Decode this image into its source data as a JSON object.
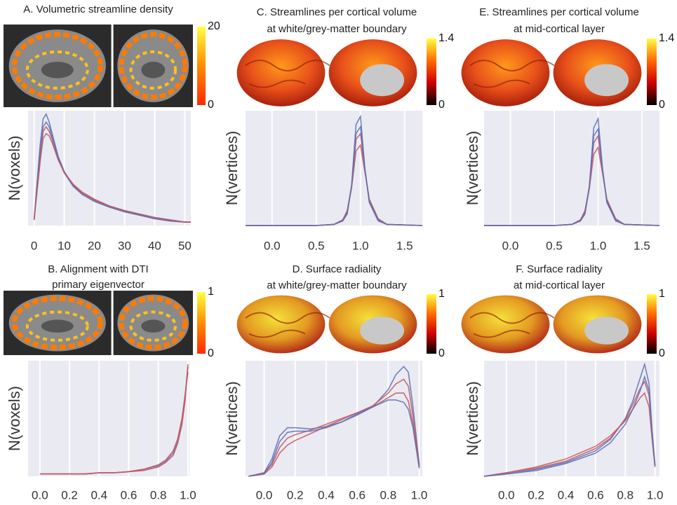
{
  "chart_data": [
    {
      "type": "line",
      "title": [
        "A. Volumetric streamline density"
      ],
      "ylabel": "N(voxels)",
      "x": [
        0,
        2,
        3,
        4,
        5,
        6,
        8,
        10,
        13,
        16,
        20,
        25,
        30,
        35,
        40,
        45,
        50,
        52
      ],
      "series": [
        {
          "color": "#5b6fb5",
          "values": [
            0.05,
            0.7,
            0.93,
            0.97,
            0.9,
            0.8,
            0.6,
            0.47,
            0.35,
            0.28,
            0.22,
            0.17,
            0.13,
            0.1,
            0.07,
            0.05,
            0.03,
            0.03
          ]
        },
        {
          "color": "#c0565e",
          "values": [
            0.05,
            0.6,
            0.82,
            0.86,
            0.82,
            0.75,
            0.58,
            0.46,
            0.35,
            0.28,
            0.22,
            0.16,
            0.12,
            0.09,
            0.06,
            0.04,
            0.03,
            0.03
          ]
        },
        {
          "color": "#5b6fb5",
          "values": [
            0.05,
            0.65,
            0.86,
            0.9,
            0.86,
            0.77,
            0.59,
            0.46,
            0.34,
            0.27,
            0.21,
            0.16,
            0.12,
            0.09,
            0.06,
            0.04,
            0.03,
            0.03
          ]
        },
        {
          "color": "#c0565e",
          "values": [
            0.05,
            0.55,
            0.76,
            0.8,
            0.78,
            0.72,
            0.57,
            0.46,
            0.36,
            0.29,
            0.23,
            0.17,
            0.13,
            0.1,
            0.07,
            0.05,
            0.03,
            0.03
          ]
        }
      ],
      "xlim": [
        -2,
        52
      ],
      "ylim": [
        0,
        1
      ],
      "xticks": [
        0,
        10,
        20,
        30,
        40,
        50
      ],
      "grid": true,
      "colorbar": {
        "ticks": [
          0,
          20
        ],
        "range": [
          0,
          20
        ],
        "colors": [
          "#ff2a00",
          "#ff8c00",
          "#ffff40"
        ]
      }
    },
    {
      "type": "line",
      "title": [
        "B. Alignment with DTI",
        "primary eigenvector"
      ],
      "ylabel": "N(voxels)",
      "x": [
        0,
        0.1,
        0.2,
        0.3,
        0.4,
        0.5,
        0.6,
        0.7,
        0.8,
        0.85,
        0.9,
        0.93,
        0.96,
        0.98,
        1.0
      ],
      "series": [
        {
          "color": "#5b6fb5",
          "values": [
            0.02,
            0.02,
            0.02,
            0.02,
            0.03,
            0.03,
            0.04,
            0.06,
            0.09,
            0.13,
            0.2,
            0.3,
            0.48,
            0.68,
            0.95
          ]
        },
        {
          "color": "#c0565e",
          "values": [
            0.02,
            0.02,
            0.02,
            0.02,
            0.03,
            0.03,
            0.04,
            0.06,
            0.1,
            0.14,
            0.22,
            0.32,
            0.5,
            0.7,
            0.9
          ]
        },
        {
          "color": "#c0565e",
          "values": [
            0.02,
            0.02,
            0.02,
            0.02,
            0.03,
            0.03,
            0.04,
            0.05,
            0.08,
            0.12,
            0.18,
            0.28,
            0.45,
            0.65,
            0.97
          ]
        }
      ],
      "xlim": [
        -0.08,
        1.01
      ],
      "ylim": [
        0,
        1
      ],
      "xticks": [
        {
          "value": 0,
          "label": "0.0"
        },
        {
          "value": 0.2,
          "label": "0.2"
        },
        {
          "value": 0.4,
          "label": "0.4"
        },
        {
          "value": 0.6,
          "label": "0.6"
        },
        {
          "value": 0.8,
          "label": "0.8"
        },
        {
          "value": 1,
          "label": "1.0"
        }
      ],
      "grid": true,
      "colorbar": {
        "ticks": [
          0,
          1
        ],
        "range": [
          0,
          1
        ],
        "colors": [
          "#ff2a00",
          "#ff8c00",
          "#ffff40"
        ]
      }
    },
    {
      "type": "line",
      "title": [
        "C. Streamlines per cortical volume",
        "at white/grey-matter boundary"
      ],
      "ylabel": "N(vertices)",
      "x": [
        -0.3,
        0.5,
        0.7,
        0.8,
        0.85,
        0.9,
        0.95,
        1.0,
        1.05,
        1.1,
        1.2,
        1.3,
        1.7
      ],
      "series": [
        {
          "color": "#5b6fb5",
          "values": [
            0,
            0,
            0.01,
            0.04,
            0.1,
            0.35,
            0.88,
            0.95,
            0.5,
            0.2,
            0.04,
            0.01,
            0
          ]
        },
        {
          "color": "#c0565e",
          "values": [
            0,
            0,
            0.01,
            0.05,
            0.12,
            0.35,
            0.75,
            0.8,
            0.48,
            0.22,
            0.05,
            0.01,
            0
          ]
        },
        {
          "color": "#c0565e",
          "values": [
            0,
            0,
            0.01,
            0.05,
            0.13,
            0.33,
            0.65,
            0.7,
            0.47,
            0.23,
            0.06,
            0.01,
            0
          ]
        },
        {
          "color": "#5b6fb5",
          "values": [
            0,
            0,
            0.01,
            0.04,
            0.11,
            0.34,
            0.8,
            0.86,
            0.49,
            0.21,
            0.05,
            0.01,
            0
          ]
        }
      ],
      "xlim": [
        -0.3,
        1.7
      ],
      "ylim": [
        0,
        1
      ],
      "xticks": [
        {
          "value": 0,
          "label": "0.0"
        },
        {
          "value": 0.5,
          "label": "0.5"
        },
        {
          "value": 1,
          "label": "1.0"
        },
        {
          "value": 1.5,
          "label": "1.5"
        }
      ],
      "grid": true,
      "colorbar": {
        "ticks": [
          0,
          1.4
        ],
        "range": [
          0,
          1.4
        ],
        "colors": [
          "#000000",
          "#cc0000",
          "#ff6a00",
          "#ffff40"
        ]
      }
    },
    {
      "type": "line",
      "title": [
        "D. Surface radiality",
        "at white/grey-matter boundary"
      ],
      "ylabel": "N(vertices)",
      "x": [
        -0.1,
        0,
        0.05,
        0.1,
        0.15,
        0.2,
        0.3,
        0.4,
        0.5,
        0.6,
        0.7,
        0.8,
        0.85,
        0.9,
        0.93,
        0.96,
        1.0
      ],
      "series": [
        {
          "color": "#5b6fb5",
          "values": [
            0,
            0.03,
            0.15,
            0.35,
            0.42,
            0.42,
            0.41,
            0.43,
            0.47,
            0.53,
            0.6,
            0.75,
            0.88,
            0.95,
            0.9,
            0.6,
            0.1
          ]
        },
        {
          "color": "#c0565e",
          "values": [
            0,
            0.03,
            0.1,
            0.25,
            0.33,
            0.36,
            0.4,
            0.45,
            0.5,
            0.55,
            0.6,
            0.68,
            0.72,
            0.72,
            0.65,
            0.45,
            0.08
          ]
        },
        {
          "color": "#c0565e",
          "values": [
            0,
            0.02,
            0.08,
            0.2,
            0.27,
            0.31,
            0.37,
            0.43,
            0.49,
            0.55,
            0.61,
            0.72,
            0.8,
            0.84,
            0.78,
            0.52,
            0.09
          ]
        },
        {
          "color": "#5b6fb5",
          "values": [
            0,
            0.02,
            0.12,
            0.3,
            0.38,
            0.39,
            0.39,
            0.42,
            0.47,
            0.54,
            0.6,
            0.66,
            0.66,
            0.64,
            0.58,
            0.42,
            0.07
          ]
        }
      ],
      "xlim": [
        -0.12,
        1.02
      ],
      "ylim": [
        0,
        1
      ],
      "xticks": [
        {
          "value": 0,
          "label": "0.0"
        },
        {
          "value": 0.2,
          "label": "0.2"
        },
        {
          "value": 0.4,
          "label": "0.4"
        },
        {
          "value": 0.6,
          "label": "0.6"
        },
        {
          "value": 0.8,
          "label": "0.8"
        },
        {
          "value": 1,
          "label": "1.0"
        }
      ],
      "grid": true,
      "colorbar": {
        "ticks": [
          0,
          1
        ],
        "range": [
          0,
          1
        ],
        "colors": [
          "#000000",
          "#cc0000",
          "#ff6a00",
          "#ffff40"
        ]
      }
    },
    {
      "type": "line",
      "title": [
        "E. Streamlines per cortical volume",
        "at mid-cortical layer"
      ],
      "ylabel": "N(vertices)",
      "x": [
        -0.3,
        0.5,
        0.7,
        0.8,
        0.85,
        0.9,
        0.95,
        1.0,
        1.05,
        1.1,
        1.2,
        1.3,
        1.7
      ],
      "series": [
        {
          "color": "#5b6fb5",
          "values": [
            0,
            0,
            0.01,
            0.04,
            0.1,
            0.33,
            0.85,
            0.93,
            0.5,
            0.2,
            0.04,
            0.01,
            0
          ]
        },
        {
          "color": "#c0565e",
          "values": [
            0,
            0,
            0.01,
            0.05,
            0.12,
            0.34,
            0.72,
            0.78,
            0.47,
            0.22,
            0.05,
            0.01,
            0
          ]
        },
        {
          "color": "#c0565e",
          "values": [
            0,
            0,
            0.01,
            0.05,
            0.13,
            0.32,
            0.62,
            0.68,
            0.46,
            0.23,
            0.06,
            0.01,
            0
          ]
        },
        {
          "color": "#5b6fb5",
          "values": [
            0,
            0,
            0.01,
            0.04,
            0.11,
            0.33,
            0.78,
            0.84,
            0.49,
            0.21,
            0.05,
            0.01,
            0
          ]
        }
      ],
      "xlim": [
        -0.3,
        1.7
      ],
      "ylim": [
        0,
        1
      ],
      "xticks": [
        {
          "value": 0,
          "label": "0.0"
        },
        {
          "value": 0.5,
          "label": "0.5"
        },
        {
          "value": 1,
          "label": "1.0"
        },
        {
          "value": 1.5,
          "label": "1.5"
        }
      ],
      "grid": true,
      "colorbar": {
        "ticks": [
          0,
          1.4
        ],
        "range": [
          0,
          1.4
        ],
        "colors": [
          "#000000",
          "#cc0000",
          "#ff6a00",
          "#ffff40"
        ]
      }
    },
    {
      "type": "line",
      "title": [
        "F. Surface radiality",
        "at mid-cortical layer"
      ],
      "ylabel": "N(vertices)",
      "x": [
        -0.15,
        0,
        0.2,
        0.4,
        0.6,
        0.7,
        0.8,
        0.85,
        0.9,
        0.93,
        0.96,
        0.98,
        1.0
      ],
      "series": [
        {
          "color": "#5b6fb5",
          "values": [
            0,
            0.02,
            0.06,
            0.12,
            0.22,
            0.32,
            0.5,
            0.65,
            0.85,
            0.97,
            0.8,
            0.4,
            0.1
          ]
        },
        {
          "color": "#c0565e",
          "values": [
            0,
            0.03,
            0.08,
            0.15,
            0.26,
            0.35,
            0.48,
            0.58,
            0.68,
            0.72,
            0.6,
            0.33,
            0.08
          ]
        },
        {
          "color": "#c0565e",
          "values": [
            0,
            0.03,
            0.07,
            0.13,
            0.24,
            0.33,
            0.49,
            0.62,
            0.76,
            0.82,
            0.7,
            0.36,
            0.09
          ]
        },
        {
          "color": "#5b6fb5",
          "values": [
            0,
            0.02,
            0.05,
            0.11,
            0.2,
            0.29,
            0.45,
            0.58,
            0.74,
            0.86,
            0.74,
            0.38,
            0.09
          ]
        }
      ],
      "xlim": [
        -0.15,
        1.03
      ],
      "ylim": [
        0,
        1
      ],
      "xticks": [
        {
          "value": 0,
          "label": "0.0"
        },
        {
          "value": 0.2,
          "label": "0.2"
        },
        {
          "value": 0.4,
          "label": "0.4"
        },
        {
          "value": 0.6,
          "label": "0.6"
        },
        {
          "value": 0.8,
          "label": "0.8"
        },
        {
          "value": 1,
          "label": "1.0"
        }
      ],
      "grid": true,
      "colorbar": {
        "ticks": [
          0,
          1
        ],
        "range": [
          0,
          1
        ],
        "colors": [
          "#000000",
          "#cc0000",
          "#ff6a00",
          "#ffff40"
        ]
      }
    }
  ]
}
